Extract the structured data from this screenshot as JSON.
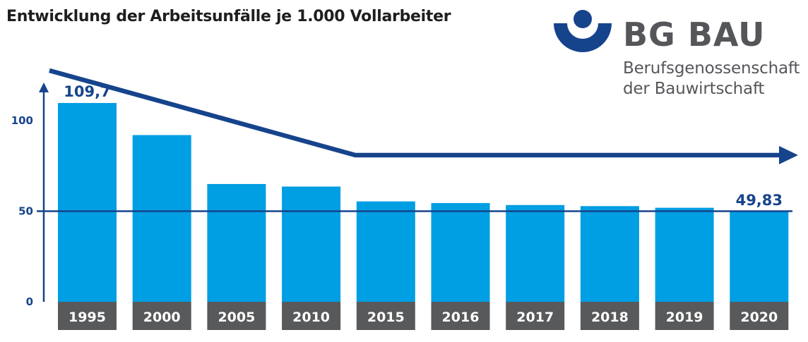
{
  "header": {
    "title": "Entwicklung der Arbeitsunfälle je 1.000 Vollarbeiter"
  },
  "brand": {
    "name": "BG BAU",
    "subtitle_line1": "Berufsgenossenschaft",
    "subtitle_line2": "der Bauwirtschaft",
    "logo_icon": "bg-bau-logo-icon"
  },
  "colors": {
    "bar": "#009ee3",
    "year_box": "#58595b",
    "accent": "#16448c",
    "text": "#1e1e1e"
  },
  "chart_data": {
    "type": "bar",
    "title": "Entwicklung der Arbeitsunfälle je 1.000 Vollarbeiter",
    "xlabel": "",
    "ylabel": "",
    "categories": [
      "1995",
      "2000",
      "2005",
      "2010",
      "2015",
      "2016",
      "2017",
      "2018",
      "2019",
      "2020"
    ],
    "values": [
      109.7,
      92,
      65,
      63.6,
      55.4,
      54.5,
      53.4,
      52.8,
      51.9,
      49.83
    ],
    "ylim": [
      0,
      118
    ],
    "yticks": [
      0,
      50,
      100
    ],
    "ytick_labels": [
      "0",
      "50",
      "100"
    ],
    "reference_line": 50,
    "data_labels": [
      {
        "category": "1995",
        "text": "109,7"
      },
      {
        "category": "2020",
        "text": "49,83"
      }
    ],
    "grid": false,
    "legend": "none",
    "annotation": "trend-arrow"
  }
}
